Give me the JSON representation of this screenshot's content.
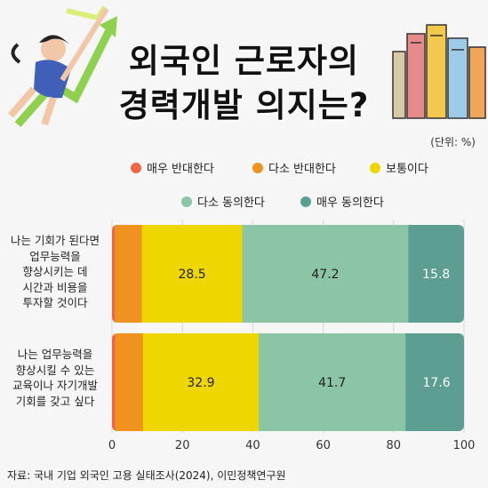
{
  "title": [
    "외국인 근로자의",
    "경력개발 의지는?"
  ],
  "unit": "(단위: %)",
  "source": "자료: 국내 기업 외국인 고용 실태조사(2024), 이민정책연구원",
  "chart_data": {
    "type": "bar",
    "orientation": "horizontal",
    "stacked": true,
    "categories": [
      "나는 기회가 된다면 업무능력을 향상시키는 데 시간과 비용을 투자할 것이다",
      "나는 업무능력을 향상시킬 수 있는 교육이나 자기개발 기회를 갖고 싶다"
    ],
    "category_lines": [
      [
        "나는 기회가 된다면",
        "업무능력을",
        "향상시키는 데",
        "시간과 비용을",
        "투자할 것이다"
      ],
      [
        "나는 업무능력을",
        "향상시킬 수 있는",
        "교육이나 자기개발",
        "기회를 갖고 싶다"
      ]
    ],
    "series": [
      {
        "name": "매우 반대한다",
        "color": "#f06548",
        "values": [
          0.8,
          0.9
        ],
        "labels": [
          "",
          ""
        ]
      },
      {
        "name": "다소 반대한다",
        "color": "#f0921f",
        "values": [
          7.7,
          7.9
        ],
        "labels": [
          "",
          ""
        ]
      },
      {
        "name": "보통이다",
        "color": "#eed600",
        "values": [
          28.5,
          32.9
        ],
        "labels": [
          "28.5",
          "32.9"
        ]
      },
      {
        "name": "다소 동의한다",
        "color": "#8cc4a6",
        "values": [
          47.2,
          41.7
        ],
        "labels": [
          "47.2",
          "41.7"
        ]
      },
      {
        "name": "매우 동의한다",
        "color": "#5c9f92",
        "values": [
          15.8,
          17.6
        ],
        "labels": [
          "15.8",
          "17.6"
        ]
      }
    ],
    "xlim": [
      0,
      100
    ],
    "xticks": [
      "0",
      "20",
      "40",
      "60",
      "80",
      "100"
    ],
    "grid": true,
    "legend_position": "top"
  }
}
